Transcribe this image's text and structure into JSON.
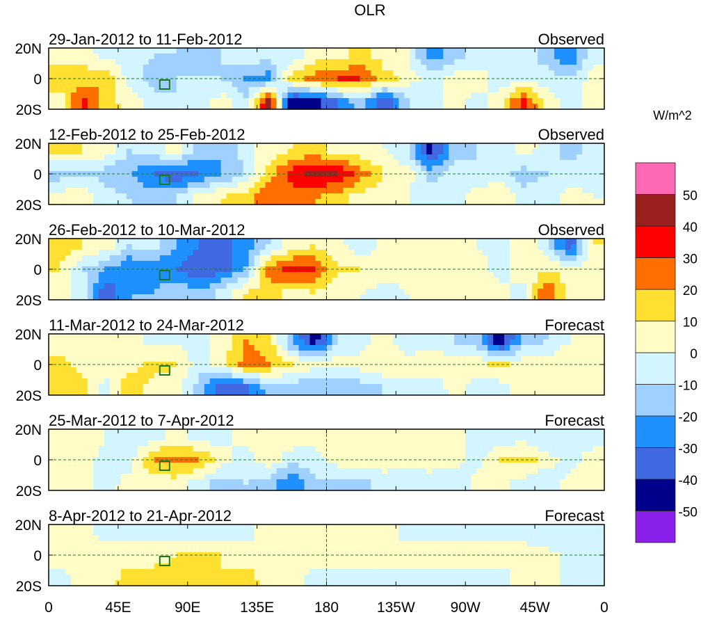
{
  "chart_data": {
    "type": "heatmap",
    "title": "OLR",
    "units": "W/m^2",
    "lon_labels": [
      "0",
      "45E",
      "90E",
      "135E",
      "180",
      "135W",
      "90W",
      "45W",
      "0"
    ],
    "lon_values": [
      0,
      45,
      90,
      135,
      180,
      225,
      270,
      315,
      360
    ],
    "lat_labels": [
      "20N",
      "0",
      "20S"
    ],
    "lat_values": [
      20,
      0,
      -20
    ],
    "grid_lon_step": 15,
    "grid_lats": [
      15,
      0,
      -15
    ],
    "colorbar": {
      "levels": [
        -50,
        -40,
        -30,
        -20,
        -10,
        0,
        10,
        20,
        30,
        40,
        50
      ],
      "labels": [
        "-50",
        "-40",
        "-30",
        "-20",
        "-10",
        "0",
        "10",
        "20",
        "30",
        "40",
        "50"
      ],
      "colors": [
        "#8a1fe9",
        "#00008b",
        "#4169e1",
        "#1e90ff",
        "#a0d0ff",
        "#d2f5ff",
        "#fffcc8",
        "#ffe030",
        "#ff6e00",
        "#ff0000",
        "#9a2020",
        "#ff69b4"
      ]
    },
    "panels": [
      {
        "date_range": "29-Jan-2012 to 11-Feb-2012",
        "label": "Observed",
        "N": [
          5,
          5,
          -5,
          -5,
          -10,
          -10,
          -20,
          -10,
          -5,
          -5,
          -5,
          5,
          5,
          15,
          5,
          0,
          -25,
          -15,
          -5,
          -5,
          -5,
          -15,
          -30,
          -5
        ],
        "EQ": [
          15,
          15,
          20,
          -5,
          -15,
          -10,
          -10,
          -10,
          -20,
          -25,
          15,
          25,
          30,
          30,
          15,
          5,
          -5,
          5,
          5,
          -5,
          -5,
          -5,
          -10,
          5
        ],
        "S": [
          5,
          35,
          15,
          5,
          -5,
          -10,
          -5,
          5,
          -10,
          45,
          -50,
          -45,
          -30,
          -15,
          -40,
          -10,
          -5,
          5,
          -5,
          5,
          35,
          5,
          -5,
          5
        ]
      },
      {
        "date_range": "12-Feb-2012 to 25-Feb-2012",
        "label": "Observed",
        "N": [
          15,
          10,
          5,
          -10,
          -5,
          5,
          -15,
          -20,
          -5,
          5,
          10,
          15,
          5,
          5,
          0,
          -10,
          -45,
          -15,
          -10,
          -10,
          5,
          -5,
          -15,
          -5
        ],
        "EQ": [
          -15,
          -10,
          -15,
          -20,
          -30,
          -40,
          -30,
          -20,
          -10,
          15,
          35,
          45,
          40,
          25,
          10,
          5,
          -15,
          -5,
          -10,
          -5,
          -15,
          -10,
          -5,
          -10
        ],
        "S": [
          5,
          5,
          -5,
          -10,
          -15,
          -10,
          5,
          10,
          15,
          30,
          25,
          20,
          15,
          5,
          5,
          0,
          -5,
          -5,
          5,
          10,
          -5,
          -5,
          5,
          0
        ]
      },
      {
        "date_range": "26-Feb-2012 to 10-Mar-2012",
        "label": "Observed",
        "N": [
          15,
          10,
          5,
          -10,
          -5,
          -20,
          -30,
          -35,
          -25,
          -10,
          5,
          10,
          5,
          -10,
          5,
          5,
          0,
          5,
          0,
          -5,
          5,
          -5,
          -40,
          10
        ],
        "EQ": [
          10,
          -10,
          -20,
          -30,
          -30,
          -30,
          -40,
          -35,
          -20,
          25,
          35,
          30,
          10,
          10,
          5,
          5,
          5,
          5,
          5,
          -5,
          5,
          10,
          5,
          5
        ],
        "S": [
          5,
          -5,
          -40,
          -20,
          -20,
          -10,
          -20,
          -5,
          10,
          15,
          5,
          10,
          5,
          0,
          -5,
          0,
          5,
          5,
          5,
          5,
          -5,
          30,
          5,
          0
        ]
      },
      {
        "date_range": "11-Mar-2012 to 24-Mar-2012",
        "label": "Forecast",
        "N": [
          0,
          0,
          5,
          5,
          -5,
          0,
          -5,
          5,
          20,
          15,
          -20,
          -45,
          -10,
          -5,
          5,
          -10,
          -5,
          -10,
          -15,
          -50,
          -15,
          -10,
          0,
          5
        ],
        "EQ": [
          15,
          5,
          10,
          5,
          15,
          10,
          -5,
          5,
          25,
          20,
          10,
          5,
          5,
          5,
          10,
          5,
          10,
          5,
          5,
          15,
          5,
          5,
          10,
          5
        ],
        "S": [
          10,
          15,
          -5,
          20,
          5,
          5,
          -15,
          -40,
          -35,
          -15,
          -15,
          -20,
          -20,
          -15,
          -10,
          -5,
          -10,
          5,
          -5,
          -5,
          5,
          5,
          10,
          5
        ]
      },
      {
        "date_range": "25-Mar-2012 to 7-Apr-2012",
        "label": "Forecast",
        "N": [
          5,
          5,
          0,
          -5,
          -5,
          5,
          -5,
          -5,
          5,
          5,
          5,
          5,
          5,
          5,
          5,
          10,
          5,
          5,
          -5,
          -5,
          -5,
          -10,
          -5,
          -5
        ],
        "EQ": [
          5,
          5,
          -5,
          -5,
          20,
          25,
          20,
          5,
          -5,
          5,
          -5,
          -5,
          5,
          5,
          5,
          5,
          5,
          5,
          -5,
          10,
          15,
          5,
          -5,
          5
        ],
        "S": [
          5,
          5,
          -5,
          5,
          5,
          5,
          -5,
          -15,
          -10,
          -15,
          -30,
          -10,
          -15,
          -15,
          -5,
          -10,
          -5,
          -10,
          5,
          5,
          -5,
          -10,
          5,
          5
        ]
      },
      {
        "date_range": "8-Apr-2012 to 21-Apr-2012",
        "label": "Forecast",
        "N": [
          5,
          5,
          -5,
          -5,
          -5,
          -5,
          -5,
          -5,
          -5,
          5,
          5,
          5,
          5,
          5,
          5,
          -5,
          -5,
          -5,
          -5,
          -5,
          -5,
          -10,
          -5,
          -5
        ],
        "EQ": [
          5,
          5,
          5,
          5,
          5,
          10,
          10,
          10,
          5,
          5,
          5,
          5,
          5,
          5,
          5,
          5,
          5,
          5,
          5,
          5,
          5,
          5,
          -5,
          -5
        ],
        "S": [
          -5,
          5,
          5,
          15,
          15,
          15,
          10,
          10,
          15,
          5,
          5,
          -5,
          -5,
          -5,
          -5,
          -5,
          -5,
          -5,
          -5,
          -5,
          5,
          5,
          -5,
          -5
        ]
      }
    ]
  }
}
